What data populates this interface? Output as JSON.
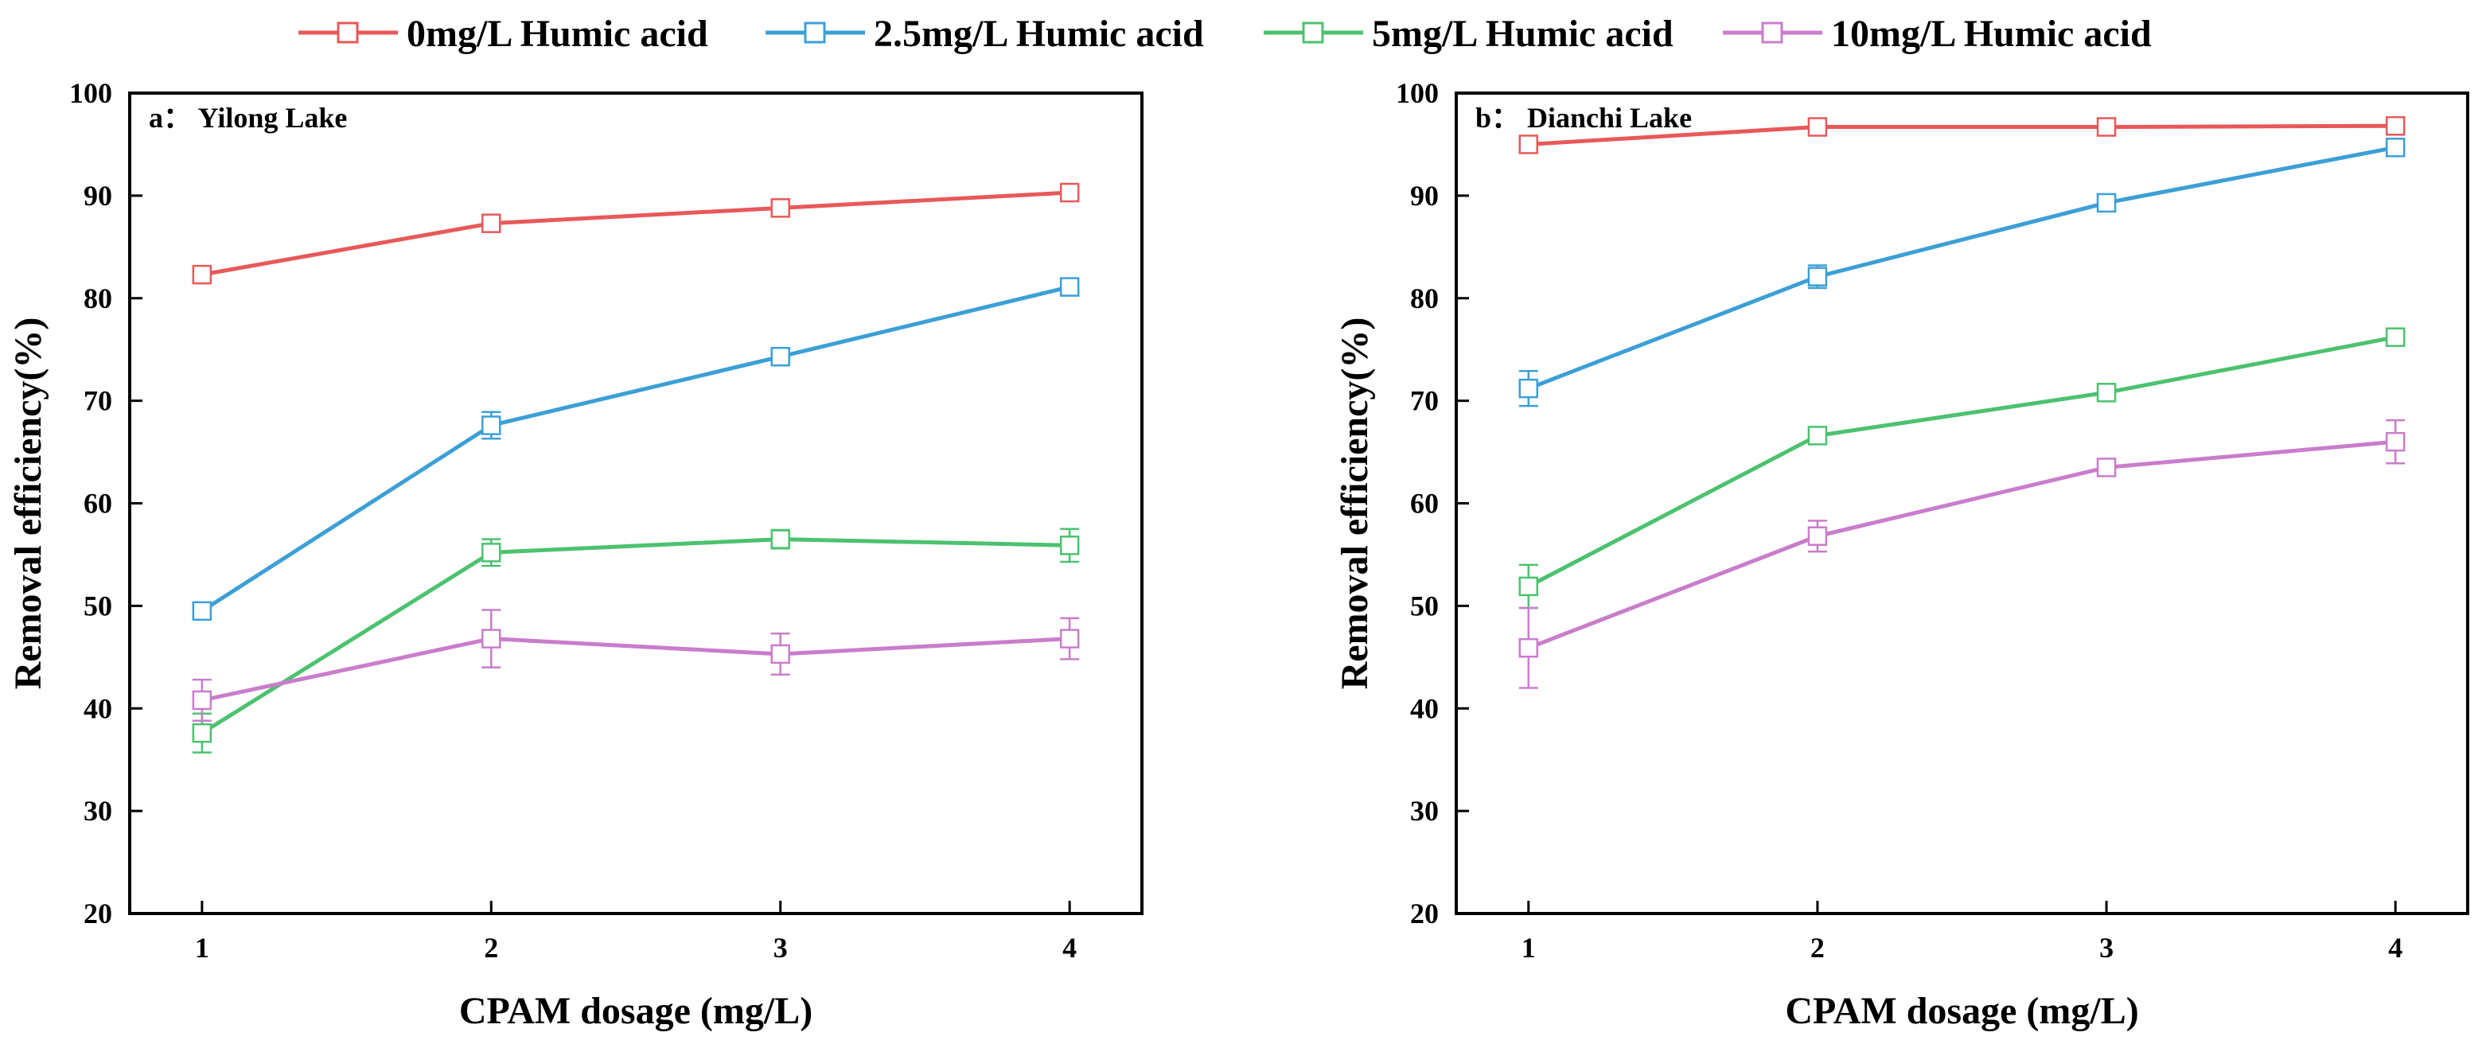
{
  "legend": [
    {
      "label": "0mg/L Humic acid",
      "color": "#E8585A"
    },
    {
      "label": "2.5mg/L Humic acid",
      "color": "#3C9FD6"
    },
    {
      "label": "5mg/L Humic acid",
      "color": "#4CC26F"
    },
    {
      "label": "10mg/L Humic acid",
      "color": "#C97DCB"
    }
  ],
  "chart_data": [
    {
      "type": "line",
      "panel_label": "a： Yilong Lake",
      "xlabel": "CPAM dosage (mg/L)",
      "ylabel": "Removal efficiency(%)",
      "x": [
        1,
        2,
        3,
        4
      ],
      "x_tick_labels": [
        "1",
        "2",
        "3",
        "4"
      ],
      "xlim": [
        0.75,
        4.25
      ],
      "ylim": [
        20,
        100
      ],
      "y_ticks": [
        20,
        30,
        40,
        50,
        60,
        70,
        80,
        90,
        100
      ],
      "y_tick_labels": [
        "20",
        "30",
        "40",
        "50",
        "60",
        "70",
        "80",
        "90",
        "100"
      ],
      "series": [
        {
          "name": "0mg/L Humic acid",
          "color": "#E8585A",
          "values": [
            82.3,
            87.3,
            88.8,
            90.3
          ],
          "errors": [
            0.6,
            0.7,
            0.6,
            0.7
          ]
        },
        {
          "name": "2.5mg/L Humic acid",
          "color": "#3C9FD6",
          "values": [
            49.5,
            67.6,
            74.3,
            81.1
          ],
          "errors": [
            0.6,
            1.3,
            0.7,
            0.8
          ]
        },
        {
          "name": "5mg/L Humic acid",
          "color": "#4CC26F",
          "values": [
            37.6,
            55.2,
            56.5,
            55.9
          ],
          "errors": [
            1.9,
            1.3,
            0.9,
            1.6
          ]
        },
        {
          "name": "10mg/L Humic acid",
          "color": "#C97DCB",
          "values": [
            40.8,
            46.8,
            45.3,
            46.8
          ],
          "errors": [
            2.0,
            2.8,
            2.0,
            2.0
          ]
        }
      ]
    },
    {
      "type": "line",
      "panel_label": "b： Dianchi Lake",
      "xlabel": "CPAM dosage (mg/L)",
      "ylabel": "Removal efficiency(%)",
      "x": [
        1,
        2,
        3,
        4
      ],
      "x_tick_labels": [
        "1",
        "2",
        "3",
        "4"
      ],
      "xlim": [
        0.75,
        4.25
      ],
      "ylim": [
        20,
        100
      ],
      "y_ticks": [
        20,
        30,
        40,
        50,
        60,
        70,
        80,
        90,
        100
      ],
      "y_tick_labels": [
        "20",
        "30",
        "40",
        "50",
        "60",
        "70",
        "80",
        "90",
        "100"
      ],
      "series": [
        {
          "name": "0mg/L Humic acid",
          "color": "#E8585A",
          "values": [
            95.0,
            96.7,
            96.7,
            96.8
          ],
          "errors": [
            0.5,
            0.4,
            0.4,
            0.4
          ]
        },
        {
          "name": "2.5mg/L Humic acid",
          "color": "#3C9FD6",
          "values": [
            71.2,
            82.1,
            89.3,
            94.7
          ],
          "errors": [
            1.7,
            1.1,
            0.7,
            0.5
          ]
        },
        {
          "name": "5mg/L Humic acid",
          "color": "#4CC26F",
          "values": [
            51.9,
            66.6,
            70.8,
            76.2
          ],
          "errors": [
            2.1,
            0.6,
            0.6,
            0.5
          ]
        },
        {
          "name": "10mg/L Humic acid",
          "color": "#C97DCB",
          "values": [
            45.9,
            56.8,
            63.5,
            66.0
          ],
          "errors": [
            3.9,
            1.5,
            0.6,
            2.1
          ]
        }
      ]
    }
  ]
}
